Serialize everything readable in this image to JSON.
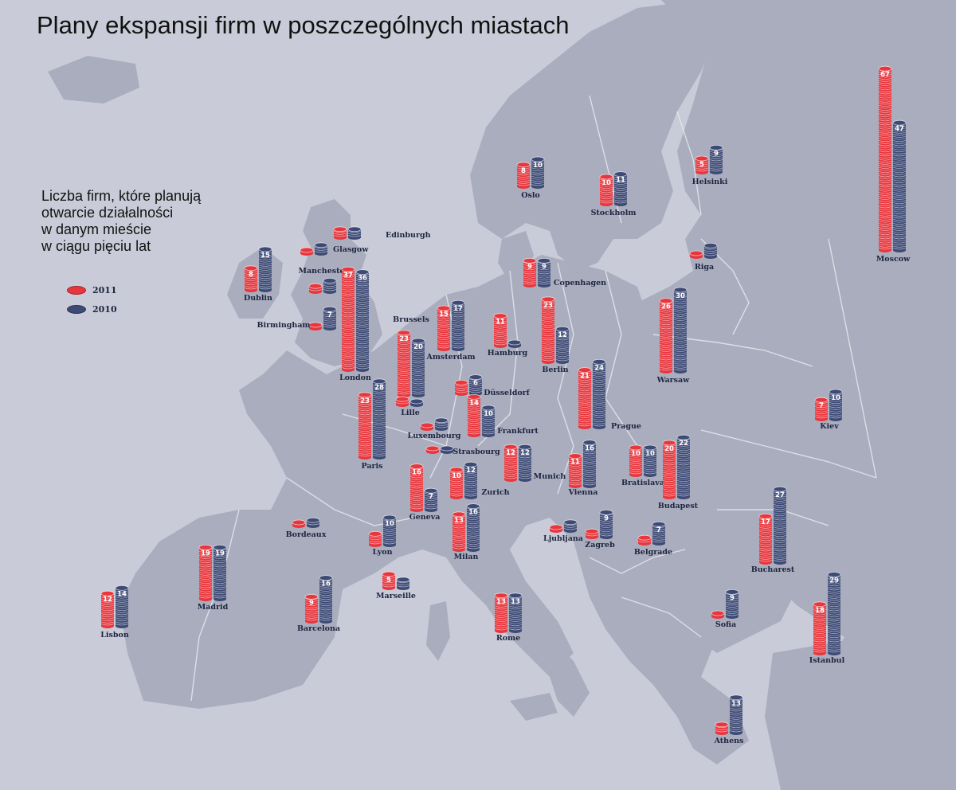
{
  "title": "Plany ekspansji firm w poszczególnych miastach",
  "legend": {
    "description_lines": [
      "Liczba firm, które planują",
      "otwarcie działalności",
      "w danym mieście",
      "w ciągu pięciu lat"
    ],
    "series": [
      {
        "label": "2011",
        "color": "#e8363d"
      },
      {
        "label": "2010",
        "color": "#3d4a75"
      }
    ]
  },
  "chart_data": {
    "type": "bar",
    "series_names": [
      "2011",
      "2010"
    ],
    "cities": [
      {
        "name": "Moscow",
        "v2011": 67,
        "v2010": 47
      },
      {
        "name": "Oslo",
        "v2011": 8,
        "v2010": 10
      },
      {
        "name": "Stockholm",
        "v2011": 10,
        "v2010": 11
      },
      {
        "name": "Helsinki",
        "v2011": 5,
        "v2010": 9
      },
      {
        "name": "Edinburgh",
        "v2011": 3,
        "v2010": 3
      },
      {
        "name": "Glasgow",
        "v2011": 1,
        "v2010": 3
      },
      {
        "name": "Dublin",
        "v2011": 8,
        "v2010": 15
      },
      {
        "name": "Manchester",
        "v2011": 2,
        "v2010": 4
      },
      {
        "name": "Birmingham",
        "v2011": 1,
        "v2010": 7
      },
      {
        "name": "London",
        "v2011": 37,
        "v2010": 36
      },
      {
        "name": "Riga",
        "v2011": 1,
        "v2010": 4
      },
      {
        "name": "Copenhagen",
        "v2011": 9,
        "v2010": 9
      },
      {
        "name": "Brussels",
        "v2011": 23,
        "v2010": 20
      },
      {
        "name": "Amsterdam",
        "v2011": 15,
        "v2010": 17
      },
      {
        "name": "Hamburg",
        "v2011": 11,
        "v2010": 1
      },
      {
        "name": "Berlin",
        "v2011": 23,
        "v2010": 12
      },
      {
        "name": "Warsaw",
        "v2011": 26,
        "v2010": 30
      },
      {
        "name": "Lille",
        "v2011": 2,
        "v2010": 0
      },
      {
        "name": "Düsseldorf",
        "v2011": 4,
        "v2010": 6
      },
      {
        "name": "Frankfurt",
        "v2011": 14,
        "v2010": 10
      },
      {
        "name": "Paris",
        "v2011": 23,
        "v2010": 28
      },
      {
        "name": "Luxembourg",
        "v2011": 1,
        "v2010": 3
      },
      {
        "name": "Strasbourg",
        "v2011": 1,
        "v2010": 1
      },
      {
        "name": "Prague",
        "v2011": 21,
        "v2010": 24
      },
      {
        "name": "Kiev",
        "v2011": 7,
        "v2010": 10
      },
      {
        "name": "Munich",
        "v2011": 12,
        "v2010": 12
      },
      {
        "name": "Geneva",
        "v2011": 16,
        "v2010": 7
      },
      {
        "name": "Zurich",
        "v2011": 10,
        "v2010": 12
      },
      {
        "name": "Vienna",
        "v2011": 11,
        "v2010": 16
      },
      {
        "name": "Bratislava",
        "v2011": 10,
        "v2010": 10
      },
      {
        "name": "Budapest",
        "v2011": 20,
        "v2010": 22
      },
      {
        "name": "Bordeaux",
        "v2011": 1,
        "v2010": 2
      },
      {
        "name": "Lyon",
        "v2011": 4,
        "v2010": 10
      },
      {
        "name": "Milan",
        "v2011": 13,
        "v2010": 16
      },
      {
        "name": "Ljubljana",
        "v2011": 1,
        "v2010": 3
      },
      {
        "name": "Zagreb",
        "v2011": 2,
        "v2010": 9
      },
      {
        "name": "Belgrade",
        "v2011": 2,
        "v2010": 7
      },
      {
        "name": "Bucharest",
        "v2011": 17,
        "v2010": 27
      },
      {
        "name": "Madrid",
        "v2011": 19,
        "v2010": 19
      },
      {
        "name": "Lisbon",
        "v2011": 12,
        "v2010": 14
      },
      {
        "name": "Barcelona",
        "v2011": 9,
        "v2010": 16
      },
      {
        "name": "Marseille",
        "v2011": 5,
        "v2010": 3
      },
      {
        "name": "Rome",
        "v2011": 13,
        "v2010": 13
      },
      {
        "name": "Sofia",
        "v2011": 1,
        "v2010": 9
      },
      {
        "name": "Istanbul",
        "v2011": 18,
        "v2010": 29
      },
      {
        "name": "Athens",
        "v2011": 3,
        "v2010": 13
      }
    ]
  },
  "colors": {
    "sea": "#c9ccd8",
    "land": "#a9adbd",
    "border": "#e6e8ef",
    "bar_2011": "#e8363d",
    "bar_2010": "#3d4a75",
    "label": "#1e2540"
  }
}
